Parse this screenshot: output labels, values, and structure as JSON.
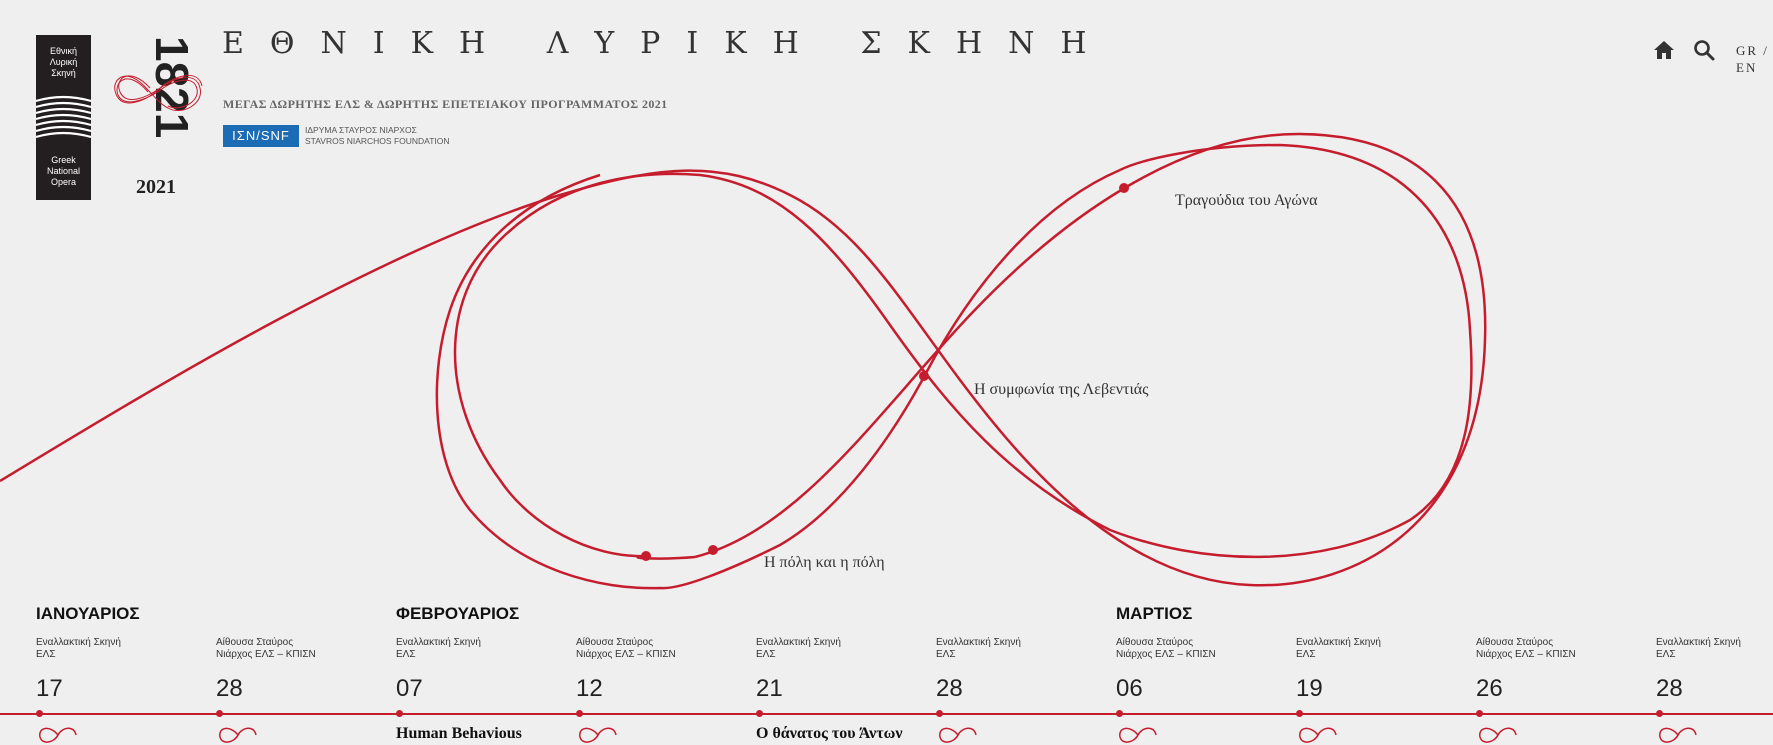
{
  "brand": {
    "logo_top": [
      "Εθνική",
      "Λυρική",
      "Σκηνή"
    ],
    "logo_bottom": [
      "Greek",
      "National",
      "Opera"
    ],
    "mark_digits": "1821",
    "year": "2021",
    "site_title": "ΕΘΝΙΚΗ ΛΥΡΙΚΗ ΣΚΗΝΗ",
    "sponsor_line": "ΜΕΓΑΣ ΔΩΡΗΤΗΣ ΕΛΣ & ΔΩΡΗΤΗΣ ΕΠΕΤΕΙΑΚΟΥ ΠΡΟΓΡΑΜΜΑΤΟΣ 2021",
    "snf_badge": "ΙΣΝ/SNF",
    "snf_line1": "ΙΔΡΥΜΑ ΣΤΑΥΡΟΣ ΝΙΑΡΧΟΣ",
    "snf_line2": "STAVROS NIARCHOS FOUNDATION",
    "accent_color": "#c51d2e",
    "snf_color": "#1b6bb5"
  },
  "header": {
    "home_icon": "home-icon",
    "search_icon": "search-icon",
    "lang_gr": "GR /",
    "lang_en": "EN"
  },
  "shows": [
    {
      "label": "Τραγούδια του Αγώνα"
    },
    {
      "label": "Η συμφωνία της Λεβεντιάς"
    },
    {
      "label": "Η πόλη και η πόλη"
    }
  ],
  "months": [
    "ΙΑΝΟΥΑΡΙΟΣ",
    "ΦΕΒΡΟΥΑΡΙΟΣ",
    "ΜΑΡΤΙΟΣ"
  ],
  "events": [
    {
      "venue": "Εναλλακτική Σκηνή\nΕΛΣ",
      "day": "17"
    },
    {
      "venue": "Αίθουσα Σταύρος\nΝιάρχος ΕΛΣ – ΚΠΙΣΝ",
      "day": "28"
    },
    {
      "venue": "Εναλλακτική Σκηνή\nΕΛΣ",
      "day": "07",
      "title": "Human Behavious"
    },
    {
      "venue": "Αίθουσα Σταύρος\nΝιάρχος ΕΛΣ – ΚΠΙΣΝ",
      "day": "12"
    },
    {
      "venue": "Εναλλακτική Σκηνή\nΕΛΣ",
      "day": "21",
      "title": "Ο θάνατος του Άντων"
    },
    {
      "venue": "Εναλλακτική Σκηνή\nΕΛΣ",
      "day": "28"
    },
    {
      "venue": "Αίθουσα Σταύρος\nΝιάρχος ΕΛΣ – ΚΠΙΣΝ",
      "day": "06"
    },
    {
      "venue": "Εναλλακτική Σκηνή\nΕΛΣ",
      "day": "19"
    },
    {
      "venue": "Αίθουσα Σταύρος\nΝιάρχος ΕΛΣ – ΚΠΙΣΝ",
      "day": "26"
    },
    {
      "venue": "Εναλλακτική Σκηνή\nΕΛΣ",
      "day": "28"
    }
  ]
}
